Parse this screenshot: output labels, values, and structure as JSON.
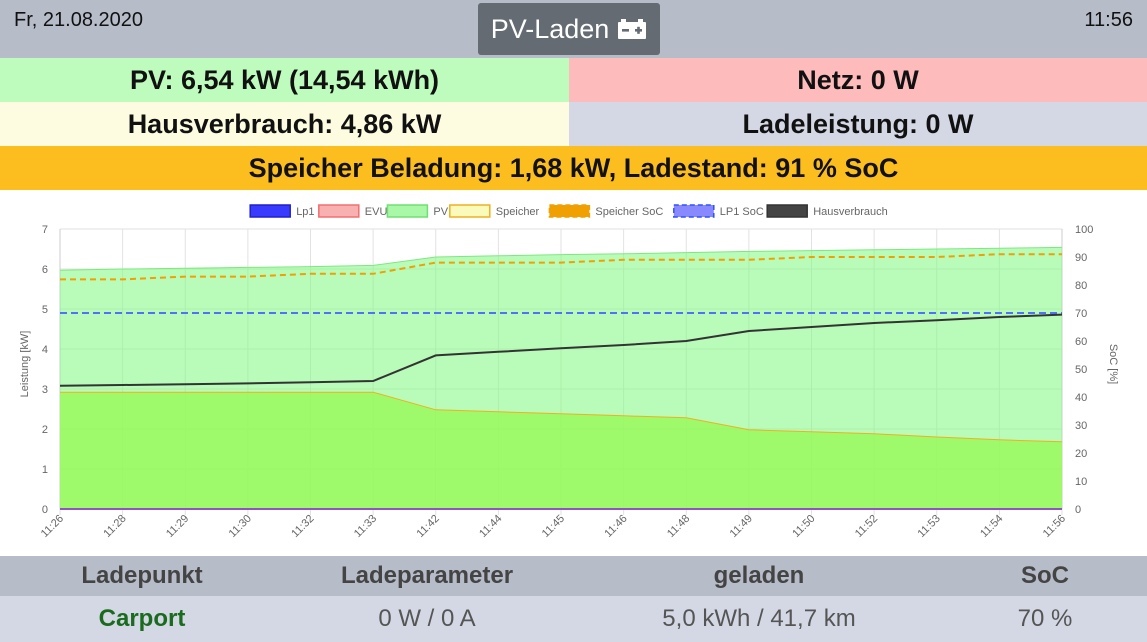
{
  "header": {
    "date": "Fr, 21.08.2020",
    "time": "11:56",
    "mode_label": "PV-Laden",
    "mode_icon": "battery-charge-icon"
  },
  "status": {
    "pv": "PV: 6,54 kW (14,54 kWh)",
    "netz": "Netz: 0 W",
    "hausverbrauch": "Hausverbrauch: 4,86 kW",
    "ladeleistung": "Ladeleistung: 0 W",
    "speicher": "Speicher Beladung: 1,68 kW, Ladestand: 91 % SoC"
  },
  "colors": {
    "pv_bg": "#bdfcbd",
    "netz_bg": "#fdbbbb",
    "haus_bg": "#fdfce0",
    "lade_bg": "#d3d8e4",
    "speicher_bg": "#fcbe1f",
    "topbar": "#b7bcc9",
    "mode_button": "#646b72",
    "carport_green": "#1a6b1e"
  },
  "chart_data": {
    "type": "line",
    "legend": [
      "Lp1",
      "EVU",
      "PV",
      "Speicher",
      "Speicher SoC",
      "LP1 SoC",
      "Hausverbrauch"
    ],
    "legend_position": "top",
    "x": [
      "11:26",
      "11:28",
      "11:29",
      "11:30",
      "11:32",
      "11:33",
      "11:42",
      "11:44",
      "11:45",
      "11:46",
      "11:48",
      "11:49",
      "11:50",
      "11:52",
      "11:53",
      "11:54",
      "11:56"
    ],
    "ylabel": "Leistung [kW]",
    "y2label": "SoC [%]",
    "ylim": [
      0,
      7
    ],
    "y2lim": [
      0,
      100
    ],
    "yticks": [
      "0",
      "1",
      "2",
      "3",
      "4",
      "5",
      "6",
      "7"
    ],
    "y2ticks": [
      "0",
      "10",
      "20",
      "30",
      "40",
      "50",
      "60",
      "70",
      "80",
      "90",
      "100"
    ],
    "grid": true,
    "series": [
      {
        "name": "Lp1",
        "axis": "left",
        "values": [
          0,
          0,
          0,
          0,
          0,
          0,
          0,
          0,
          0,
          0,
          0,
          0,
          0,
          0,
          0,
          0,
          0
        ]
      },
      {
        "name": "EVU",
        "axis": "left",
        "values": [
          0,
          0,
          0,
          0,
          0,
          0,
          0,
          0,
          0,
          0,
          0,
          0,
          0,
          0,
          0,
          0,
          0
        ]
      },
      {
        "name": "PV",
        "axis": "left",
        "values": [
          5.97,
          6.0,
          6.02,
          6.04,
          6.06,
          6.09,
          6.3,
          6.33,
          6.36,
          6.38,
          6.41,
          6.44,
          6.46,
          6.48,
          6.5,
          6.52,
          6.54
        ]
      },
      {
        "name": "Speicher",
        "axis": "left",
        "values": [
          2.92,
          2.92,
          2.92,
          2.92,
          2.92,
          2.92,
          2.48,
          2.43,
          2.38,
          2.33,
          2.28,
          1.98,
          1.93,
          1.88,
          1.8,
          1.73,
          1.68
        ]
      },
      {
        "name": "Speicher SoC",
        "axis": "right",
        "values": [
          82,
          82,
          83,
          83,
          84,
          84,
          88,
          88,
          88,
          89,
          89,
          89,
          90,
          90,
          90,
          91,
          91
        ]
      },
      {
        "name": "LP1 SoC",
        "axis": "right",
        "values": [
          70,
          70,
          70,
          70,
          70,
          70,
          70,
          70,
          70,
          70,
          70,
          70,
          70,
          70,
          70,
          70,
          70
        ]
      },
      {
        "name": "Hausverbrauch",
        "axis": "left",
        "values": [
          3.08,
          3.1,
          3.12,
          3.14,
          3.17,
          3.2,
          3.84,
          3.93,
          4.02,
          4.1,
          4.2,
          4.45,
          4.55,
          4.65,
          4.72,
          4.8,
          4.86
        ]
      }
    ]
  },
  "table": {
    "headers": [
      "Ladepunkt",
      "Ladeparameter",
      "geladen",
      "SoC"
    ],
    "rows": [
      {
        "ladepunkt": "Carport",
        "ladeparameter": "0 W / 0 A",
        "geladen": "5,0 kWh / 41,7 km",
        "soc": "70 %"
      }
    ]
  }
}
